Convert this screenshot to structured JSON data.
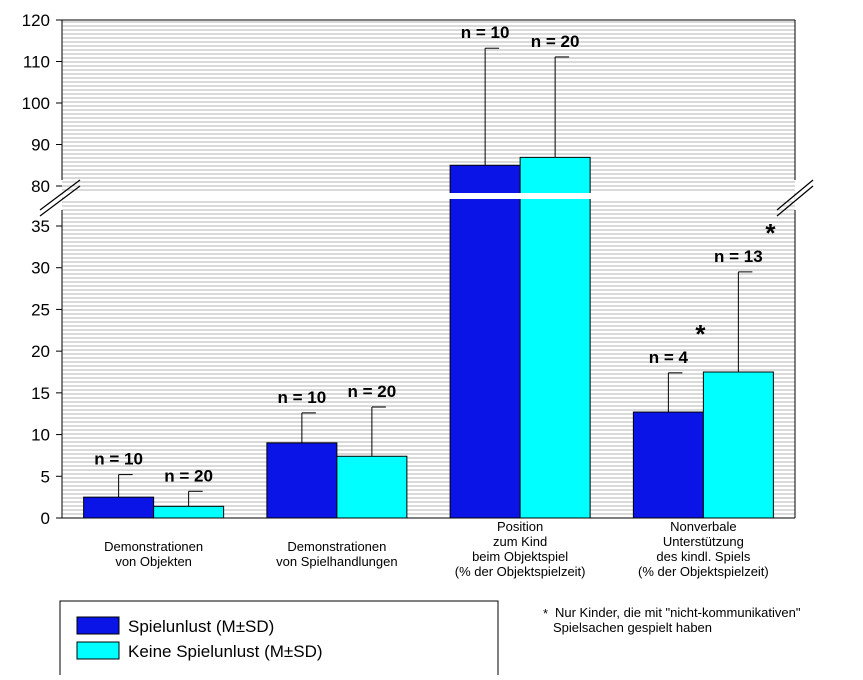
{
  "chart_data": {
    "type": "bar",
    "title": "",
    "xlabel": "",
    "ylabel": "",
    "ylim": [
      0,
      120
    ],
    "axis_break": {
      "from": 35,
      "to": 80
    },
    "y_ticks_lower": [
      "0",
      "5",
      "10",
      "15",
      "20",
      "25",
      "30",
      "35"
    ],
    "y_ticks_upper": [
      "80",
      "90",
      "100",
      "110",
      "120"
    ],
    "grid": true,
    "legend_position": "bottom-left",
    "categories": [
      [
        "Demonstrationen",
        "von Objekten"
      ],
      [
        "Demonstrationen",
        "von Spielhandlungen"
      ],
      [
        "Position",
        "zum Kind",
        "beim Objektspiel",
        "(% der Objektspielzeit)"
      ],
      [
        "Nonverbale",
        "Unterstützung",
        "des kindl. Spiels",
        "(% der Objektspielzeit)"
      ]
    ],
    "series": [
      {
        "name": "Spielunlust (M±SD)",
        "color": "#0a14e6",
        "values": [
          2.5,
          9.0,
          85.0,
          12.7
        ],
        "sd": [
          2.7,
          3.6,
          28.2,
          4.7
        ],
        "n_labels": [
          "n = 10",
          "n = 10",
          "n = 10",
          "n = 4"
        ],
        "star": [
          false,
          false,
          false,
          true
        ]
      },
      {
        "name": "Keine Spielunlust (M±SD)",
        "color": "#00ffff",
        "values": [
          1.4,
          7.4,
          86.9,
          17.5
        ],
        "sd": [
          1.8,
          5.9,
          24.2,
          12.0
        ],
        "n_labels": [
          "n = 20",
          "n = 20",
          "n = 20",
          "n = 13"
        ],
        "star": [
          false,
          false,
          false,
          true
        ]
      }
    ],
    "star_symbol": "*",
    "footnote": [
      "Nur Kinder, die mit \"nicht-kommunikativen\"",
      "Spielsachen gespielt haben"
    ]
  }
}
